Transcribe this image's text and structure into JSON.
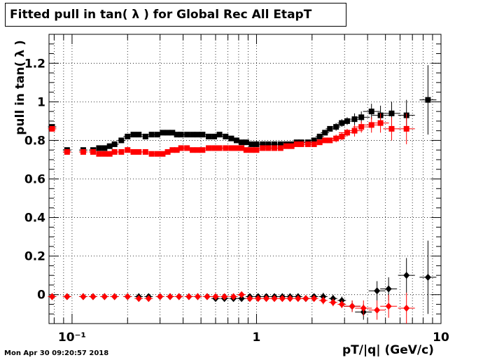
{
  "title": "Fitted pull in tan( λ ) for Global Rec All EtapT",
  "xlabel": "pT/|q| (GeV/c)",
  "ylabel": "pull in tan( λ )",
  "timestamp": "Mon Apr 30 09:20:57 2018",
  "chart_data": {
    "type": "scatter",
    "x_scale": "log",
    "xlim": [
      0.075,
      10
    ],
    "ylim": [
      -0.15,
      1.35
    ],
    "grid": true,
    "x_ticks": [
      {
        "value": 0.1,
        "label": "10⁻¹"
      },
      {
        "value": 1,
        "label": "1"
      },
      {
        "value": 10,
        "label": "10"
      }
    ],
    "y_ticks": [
      {
        "value": 0,
        "label": "0"
      },
      {
        "value": 0.2,
        "label": "0.2"
      },
      {
        "value": 0.4,
        "label": "0.4"
      },
      {
        "value": 0.6,
        "label": "0.6"
      },
      {
        "value": 0.8,
        "label": "0.8"
      },
      {
        "value": 1,
        "label": "1"
      },
      {
        "value": 1.2,
        "label": "1.2"
      }
    ],
    "series": [
      {
        "color": "#000000",
        "marker": "square",
        "x": [
          0.078,
          0.094,
          0.115,
          0.13,
          0.14,
          0.15,
          0.16,
          0.17,
          0.185,
          0.2,
          0.215,
          0.23,
          0.25,
          0.27,
          0.29,
          0.31,
          0.33,
          0.35,
          0.37,
          0.39,
          0.42,
          0.45,
          0.48,
          0.51,
          0.55,
          0.59,
          0.63,
          0.68,
          0.73,
          0.78,
          0.83,
          0.88,
          0.94,
          1.0,
          1.08,
          1.16,
          1.25,
          1.35,
          1.45,
          1.55,
          1.65,
          1.75,
          1.9,
          2.05,
          2.2,
          2.35,
          2.5,
          2.7,
          2.9,
          3.1,
          3.4,
          3.7,
          4.2,
          4.7,
          5.4,
          6.5,
          8.5
        ],
        "y": [
          0.87,
          0.75,
          0.75,
          0.75,
          0.76,
          0.76,
          0.77,
          0.78,
          0.8,
          0.82,
          0.83,
          0.83,
          0.82,
          0.83,
          0.83,
          0.84,
          0.84,
          0.84,
          0.83,
          0.83,
          0.83,
          0.83,
          0.83,
          0.83,
          0.82,
          0.82,
          0.83,
          0.82,
          0.81,
          0.8,
          0.79,
          0.79,
          0.78,
          0.78,
          0.78,
          0.78,
          0.78,
          0.78,
          0.78,
          0.78,
          0.79,
          0.79,
          0.79,
          0.8,
          0.82,
          0.84,
          0.86,
          0.87,
          0.89,
          0.9,
          0.91,
          0.92,
          0.95,
          0.93,
          0.94,
          0.93,
          1.01
        ],
        "yerr": [
          0.01,
          0.01,
          0.01,
          0.01,
          0.01,
          0.01,
          0.01,
          0.01,
          0.01,
          0.01,
          0.01,
          0.01,
          0.01,
          0.01,
          0.01,
          0.01,
          0.01,
          0.01,
          0.01,
          0.01,
          0.01,
          0.01,
          0.01,
          0.01,
          0.01,
          0.01,
          0.01,
          0.01,
          0.01,
          0.01,
          0.01,
          0.01,
          0.01,
          0.01,
          0.01,
          0.01,
          0.01,
          0.01,
          0.01,
          0.01,
          0.01,
          0.01,
          0.01,
          0.01,
          0.01,
          0.01,
          0.01,
          0.02,
          0.02,
          0.02,
          0.03,
          0.03,
          0.04,
          0.05,
          0.06,
          0.08,
          0.18
        ]
      },
      {
        "color": "#ff0000",
        "marker": "square",
        "x": [
          0.078,
          0.094,
          0.115,
          0.13,
          0.14,
          0.15,
          0.16,
          0.17,
          0.185,
          0.2,
          0.215,
          0.23,
          0.25,
          0.27,
          0.29,
          0.31,
          0.33,
          0.35,
          0.37,
          0.39,
          0.42,
          0.45,
          0.48,
          0.51,
          0.55,
          0.59,
          0.63,
          0.68,
          0.73,
          0.78,
          0.83,
          0.88,
          0.94,
          1.0,
          1.08,
          1.16,
          1.25,
          1.35,
          1.45,
          1.55,
          1.65,
          1.75,
          1.9,
          2.05,
          2.2,
          2.35,
          2.5,
          2.7,
          2.9,
          3.1,
          3.4,
          3.7,
          4.2,
          4.7,
          5.4,
          6.5
        ],
        "y": [
          0.86,
          0.74,
          0.74,
          0.74,
          0.73,
          0.73,
          0.73,
          0.74,
          0.74,
          0.75,
          0.74,
          0.74,
          0.74,
          0.73,
          0.73,
          0.73,
          0.74,
          0.75,
          0.75,
          0.76,
          0.76,
          0.75,
          0.75,
          0.75,
          0.76,
          0.76,
          0.76,
          0.76,
          0.76,
          0.76,
          0.76,
          0.75,
          0.75,
          0.75,
          0.76,
          0.76,
          0.76,
          0.76,
          0.77,
          0.77,
          0.78,
          0.78,
          0.78,
          0.78,
          0.79,
          0.8,
          0.8,
          0.81,
          0.82,
          0.84,
          0.85,
          0.87,
          0.88,
          0.89,
          0.86,
          0.86
        ],
        "yerr": [
          0.01,
          0.01,
          0.01,
          0.01,
          0.01,
          0.01,
          0.01,
          0.01,
          0.01,
          0.01,
          0.01,
          0.01,
          0.01,
          0.01,
          0.01,
          0.01,
          0.01,
          0.01,
          0.01,
          0.01,
          0.01,
          0.01,
          0.01,
          0.01,
          0.01,
          0.01,
          0.01,
          0.01,
          0.01,
          0.01,
          0.01,
          0.01,
          0.01,
          0.01,
          0.01,
          0.01,
          0.01,
          0.01,
          0.01,
          0.01,
          0.01,
          0.01,
          0.01,
          0.01,
          0.01,
          0.01,
          0.01,
          0.02,
          0.02,
          0.02,
          0.03,
          0.03,
          0.04,
          0.05,
          0.06,
          0.08
        ]
      },
      {
        "color": "#000000",
        "marker": "diamond",
        "x": [
          0.078,
          0.094,
          0.115,
          0.13,
          0.15,
          0.17,
          0.2,
          0.23,
          0.26,
          0.3,
          0.34,
          0.38,
          0.43,
          0.48,
          0.54,
          0.6,
          0.67,
          0.75,
          0.83,
          0.92,
          1.02,
          1.13,
          1.25,
          1.38,
          1.52,
          1.68,
          1.85,
          2.05,
          2.3,
          2.6,
          2.9,
          3.3,
          3.8,
          4.5,
          5.2,
          6.5,
          8.5
        ],
        "y": [
          -0.01,
          -0.01,
          -0.01,
          -0.01,
          -0.01,
          -0.01,
          -0.01,
          -0.01,
          -0.01,
          -0.01,
          -0.01,
          -0.01,
          -0.01,
          -0.01,
          -0.01,
          -0.02,
          -0.02,
          -0.02,
          -0.02,
          -0.01,
          -0.01,
          -0.01,
          -0.01,
          -0.01,
          -0.01,
          -0.01,
          -0.02,
          -0.01,
          -0.01,
          -0.02,
          -0.03,
          -0.06,
          -0.09,
          0.02,
          0.03,
          0.1,
          0.09
        ],
        "yerr": [
          0.01,
          0.01,
          0.01,
          0.01,
          0.01,
          0.01,
          0.01,
          0.01,
          0.01,
          0.01,
          0.01,
          0.01,
          0.01,
          0.01,
          0.01,
          0.01,
          0.01,
          0.01,
          0.01,
          0.01,
          0.01,
          0.01,
          0.01,
          0.01,
          0.01,
          0.01,
          0.01,
          0.01,
          0.02,
          0.02,
          0.02,
          0.03,
          0.04,
          0.05,
          0.06,
          0.09,
          0.19
        ]
      },
      {
        "color": "#ff0000",
        "marker": "diamond",
        "x": [
          0.078,
          0.094,
          0.115,
          0.13,
          0.15,
          0.17,
          0.2,
          0.23,
          0.26,
          0.3,
          0.34,
          0.38,
          0.43,
          0.48,
          0.54,
          0.6,
          0.67,
          0.75,
          0.83,
          0.92,
          1.02,
          1.13,
          1.25,
          1.38,
          1.52,
          1.68,
          1.85,
          2.05,
          2.3,
          2.6,
          2.9,
          3.3,
          3.8,
          4.5,
          5.2,
          6.5
        ],
        "y": [
          -0.01,
          -0.01,
          -0.01,
          -0.01,
          -0.01,
          -0.01,
          -0.01,
          -0.02,
          -0.02,
          -0.01,
          -0.01,
          -0.01,
          -0.01,
          -0.01,
          -0.01,
          -0.01,
          -0.01,
          -0.01,
          0.0,
          -0.02,
          -0.02,
          -0.02,
          -0.02,
          -0.02,
          -0.02,
          -0.02,
          -0.02,
          -0.02,
          -0.03,
          -0.04,
          -0.05,
          -0.06,
          -0.07,
          -0.08,
          -0.06,
          -0.07
        ],
        "yerr": [
          0.01,
          0.01,
          0.01,
          0.01,
          0.01,
          0.01,
          0.01,
          0.01,
          0.01,
          0.01,
          0.01,
          0.01,
          0.01,
          0.01,
          0.01,
          0.01,
          0.01,
          0.01,
          0.01,
          0.01,
          0.01,
          0.01,
          0.01,
          0.01,
          0.01,
          0.01,
          0.01,
          0.01,
          0.02,
          0.02,
          0.02,
          0.03,
          0.04,
          0.05,
          0.06,
          0.08
        ]
      }
    ]
  }
}
